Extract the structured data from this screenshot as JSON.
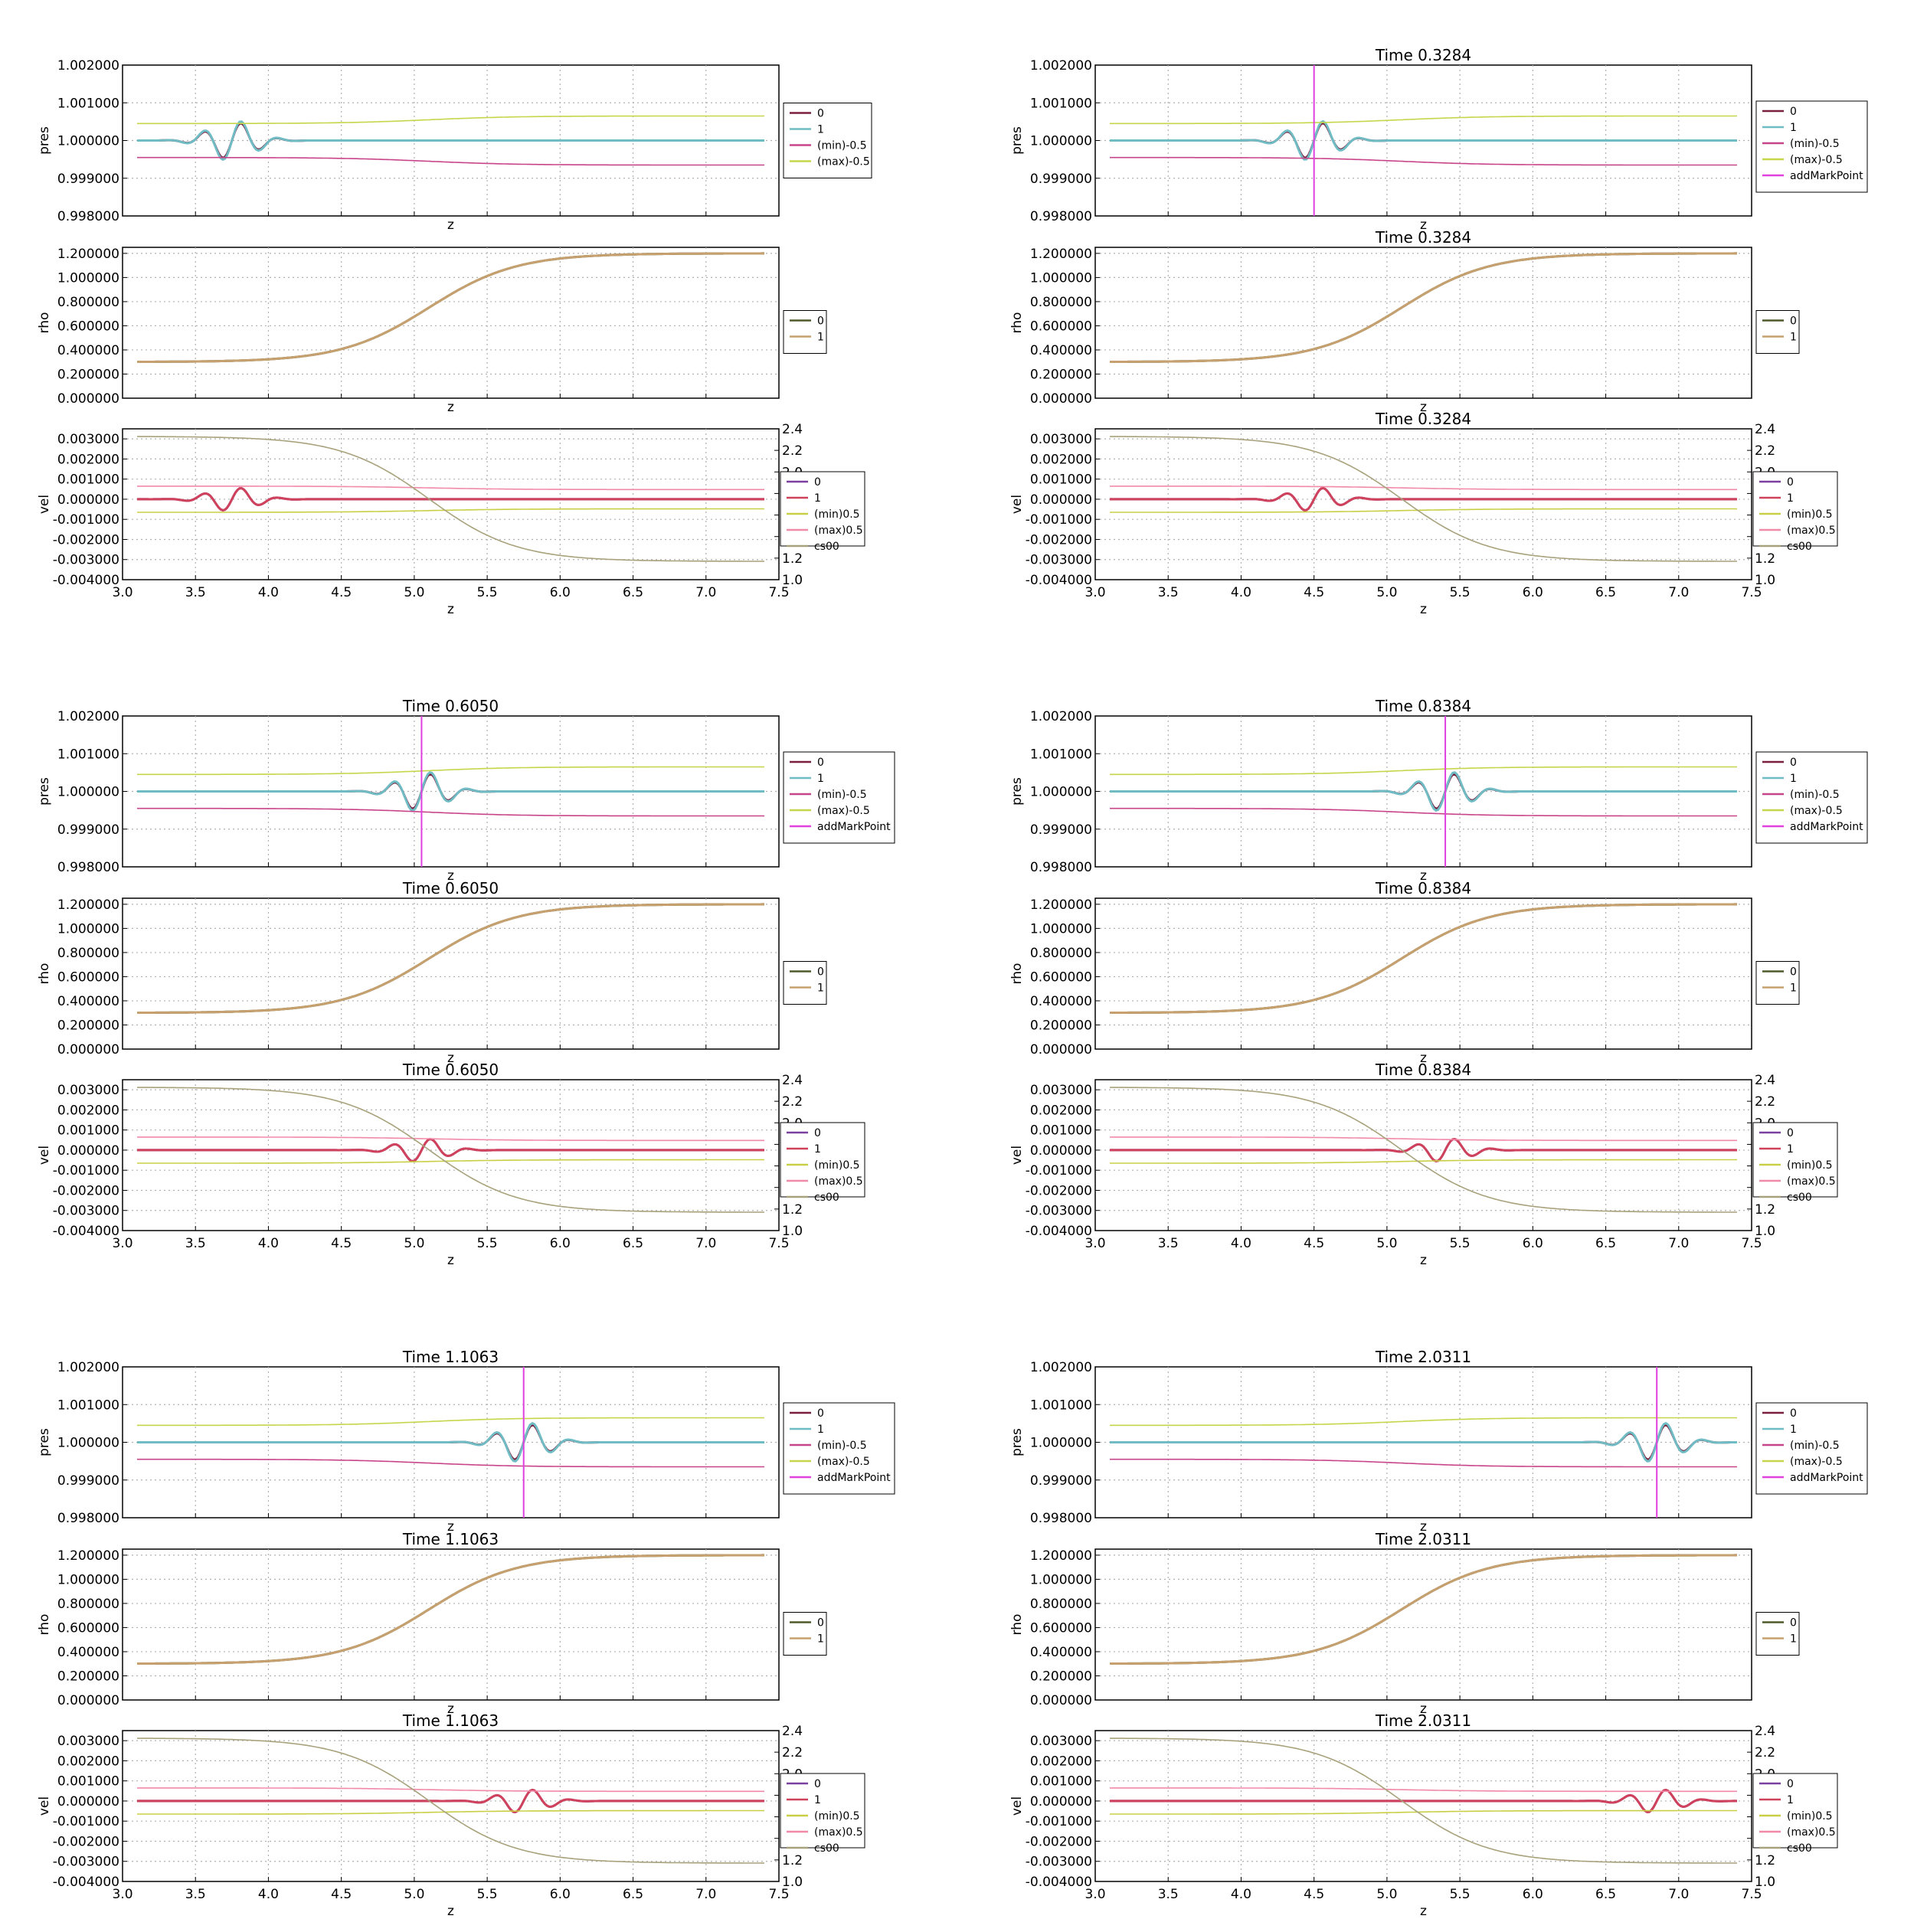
{
  "figure": {
    "panels": [
      {
        "title": "",
        "mark_z": null
      },
      {
        "title": "Time 0.3284",
        "mark_z": 4.5
      },
      {
        "title": "Time 0.6050",
        "mark_z": 5.05
      },
      {
        "title": "Time 0.8384",
        "mark_z": 5.4
      },
      {
        "title": "Time 1.1063",
        "mark_z": 5.75
      },
      {
        "title": "Time 2.0311",
        "mark_z": 6.85
      }
    ],
    "x_ticks": [
      "3.0",
      "3.5",
      "4.0",
      "4.5",
      "5.0",
      "5.5",
      "6.0",
      "6.5",
      "7.0",
      "7.5"
    ],
    "x_label": "z"
  },
  "chart_data": {
    "type": "line",
    "xlim": [
      3.0,
      7.5
    ],
    "x_range": [
      3.1,
      7.4
    ],
    "grid": true,
    "interface_center_z": 5.1,
    "wave_centers_z": [
      3.75,
      4.5,
      5.05,
      5.4,
      5.75,
      6.85
    ],
    "subplots": {
      "pres": {
        "ylabel": "pres",
        "ylim": [
          0.998,
          1.002
        ],
        "yticks": [
          "0.998000",
          "0.999000",
          "1.000000",
          "1.001000",
          "1.002000"
        ],
        "series": [
          {
            "name": "0",
            "color": "#7a1f3d",
            "baseline": 1.0,
            "wave_amplitude": 0.0005
          },
          {
            "name": "1",
            "color": "#6fbcc4",
            "baseline": 1.0,
            "wave_amplitude": 0.00055
          },
          {
            "name": "(min)-0.5",
            "color": "#c8448a",
            "left": 0.99955,
            "right": 0.99935
          },
          {
            "name": "(max)-0.5",
            "color": "#c5d64a",
            "left": 1.00045,
            "right": 1.00065
          },
          {
            "name": "addMarkPoint",
            "color": "#e040e0"
          }
        ]
      },
      "rho": {
        "ylabel": "rho",
        "ylim": [
          0.0,
          1.25
        ],
        "yticks": [
          "0.000000",
          "0.200000",
          "0.400000",
          "0.600000",
          "0.800000",
          "1.000000",
          "1.200000"
        ],
        "series": [
          {
            "name": "0",
            "color": "#4d5a2a",
            "left": 0.3,
            "right": 1.2
          },
          {
            "name": "1",
            "color": "#c6a06e",
            "left": 0.3,
            "right": 1.2
          }
        ]
      },
      "vel": {
        "ylabel": "vel",
        "ylim": [
          -0.004,
          0.0035
        ],
        "yticks": [
          "-0.004000",
          "-0.003000",
          "-0.002000",
          "-0.001000",
          "0.000000",
          "0.001000",
          "0.002000",
          "0.003000"
        ],
        "y2label": "cs00",
        "y2lim": [
          1.0,
          2.4
        ],
        "y2ticks": [
          "1.0",
          "1.2",
          "1.4",
          "1.6",
          "1.8",
          "2.0",
          "2.2",
          "2.4"
        ],
        "series": [
          {
            "name": "0",
            "color": "#7b3fa0",
            "baseline": 0.0,
            "wave_amplitude": 0.0006
          },
          {
            "name": "1",
            "color": "#d0425c",
            "baseline": 0.0,
            "wave_amplitude": 0.0006
          },
          {
            "name": "(min)0.5",
            "color": "#c9cf45",
            "left": -0.00065,
            "right": -0.00048
          },
          {
            "name": "(max)0.5",
            "color": "#f08aa8",
            "left": 0.00065,
            "right": 0.00048
          },
          {
            "name": "cs00",
            "color": "#a8a27c",
            "axis": "right",
            "left": 2.33,
            "right": 1.17
          }
        ]
      }
    }
  }
}
